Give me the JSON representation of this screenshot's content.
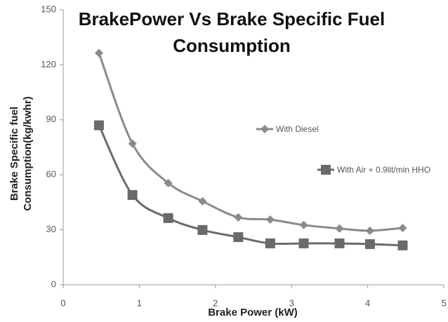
{
  "chart_data": {
    "type": "line",
    "title": "BrakePower Vs Brake Specific Fuel Consumption",
    "x_label": "Brake Power (kW)",
    "y_label": "Brake Specific fuel Consumption(kg/kwhr)",
    "xlim": [
      0,
      5
    ],
    "xticks": [
      0,
      1,
      2,
      3,
      4,
      5
    ],
    "ylim": [
      0,
      150
    ],
    "yticks": [
      0,
      30,
      60,
      90,
      120,
      150
    ],
    "grid": false,
    "legend": "right",
    "series": [
      {
        "name": "With Diesel",
        "color": "#8a8a8a",
        "marker": "diamond",
        "x": [
          0.47,
          0.91,
          1.38,
          1.83,
          2.3,
          2.72,
          3.16,
          3.63,
          4.03,
          4.46
        ],
        "values": [
          126.4,
          77,
          55.5,
          45.6,
          36.8,
          35.6,
          32.6,
          30.7,
          29.5,
          31
        ]
      },
      {
        "name": "With Air + 0.9lit/min HHO",
        "color": "#6a6a6a",
        "marker": "square",
        "x": [
          0.47,
          0.91,
          1.38,
          1.83,
          2.3,
          2.72,
          3.16,
          3.63,
          4.03,
          4.46
        ],
        "values": [
          87,
          49,
          36.4,
          29.9,
          26,
          22.6,
          22.6,
          22.6,
          22.2,
          21.5
        ]
      }
    ]
  }
}
